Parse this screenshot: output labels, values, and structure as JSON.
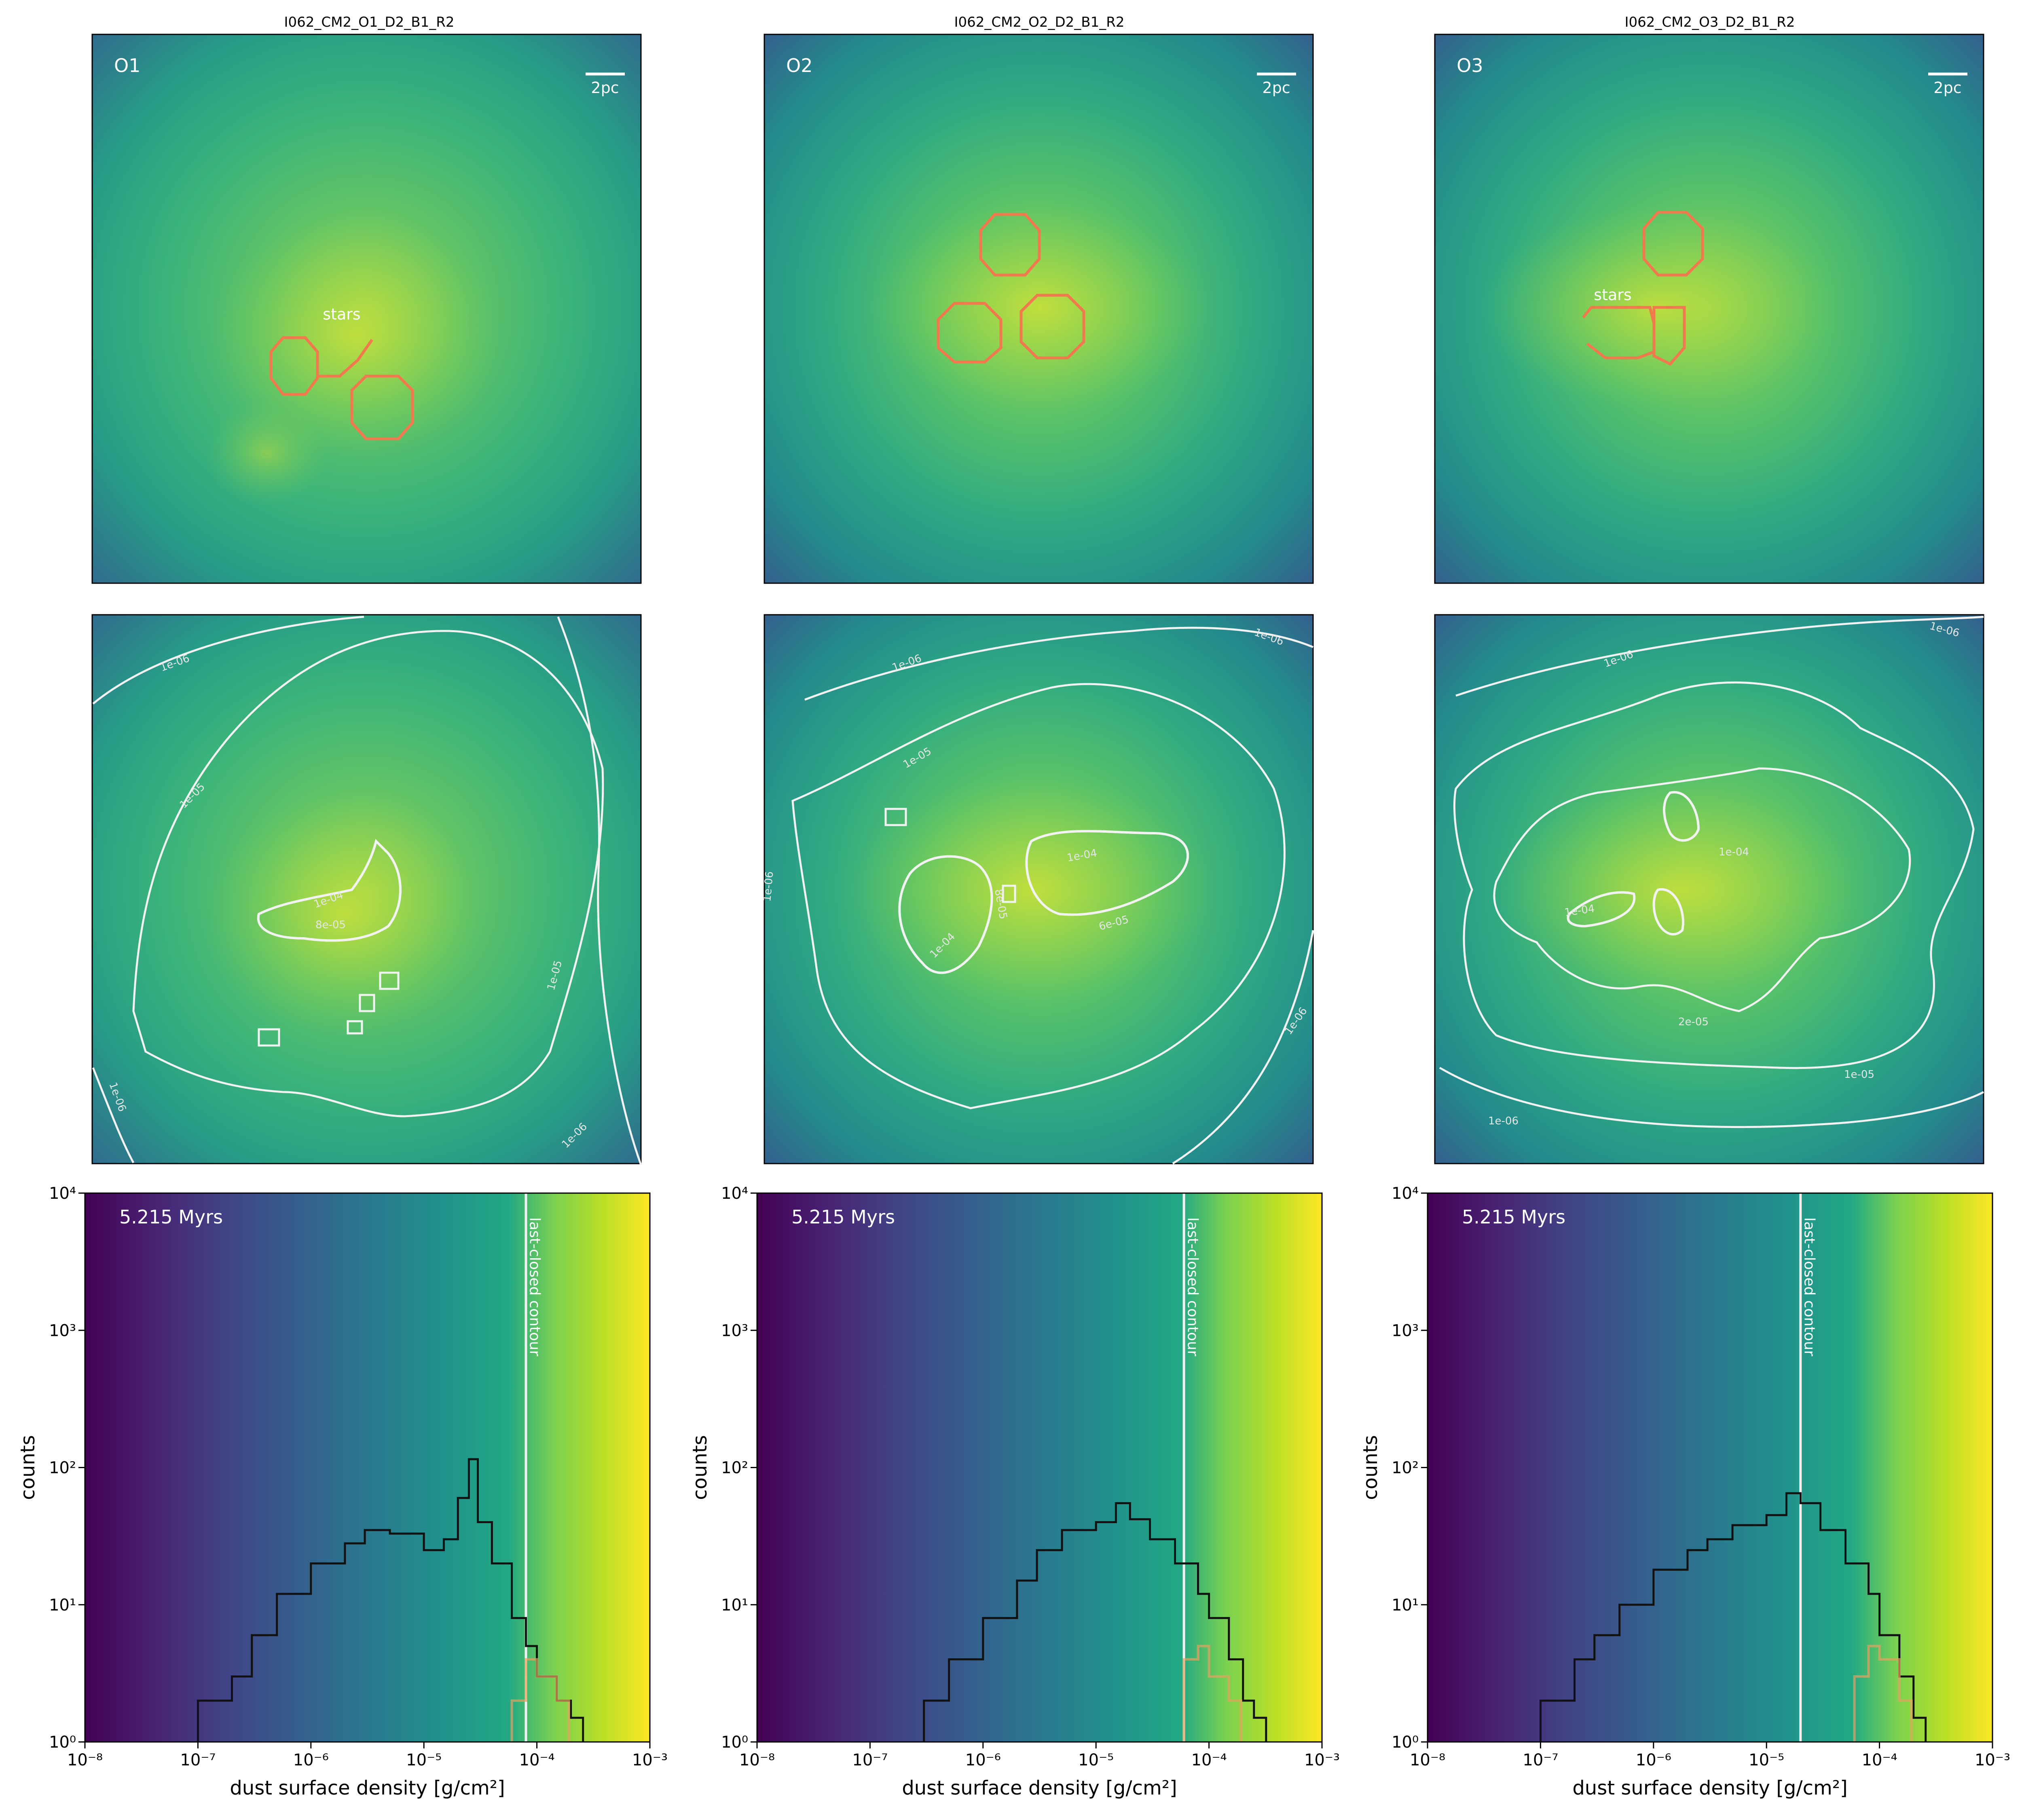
{
  "figure": {
    "panels_top": [
      {
        "title": "I062_CM2_O1_D2_B1_R2",
        "label": "O1",
        "scale_bar": "2pc",
        "annotation": "stars"
      },
      {
        "title": "I062_CM2_O2_D2_B1_R2",
        "label": "O2",
        "scale_bar": "2pc",
        "annotation": ""
      },
      {
        "title": "I062_CM2_O3_D2_B1_R2",
        "label": "O3",
        "scale_bar": "2pc",
        "annotation": "stars"
      }
    ],
    "panels_middle": [
      {
        "contour_labels": [
          "1e-06",
          "1e-05",
          "1e-04",
          "8e-05",
          "1e-05",
          "1e-06",
          "1e-06"
        ]
      },
      {
        "contour_labels": [
          "1e-06",
          "1e-06",
          "1e-05",
          "1e-04",
          "1e-04",
          "6e-05",
          "8e-05",
          "1e-06",
          "1e-06"
        ]
      },
      {
        "contour_labels": [
          "1e-06",
          "1e-06",
          "1e-04",
          "1e-04",
          "2e-05",
          "1e-05",
          "1e-06"
        ]
      }
    ]
  },
  "colors": {
    "contour": "#f2f2f2",
    "stars": "#f07a4e",
    "histogram": "#111111",
    "orange_hist": "#e8a060"
  },
  "chart_data": [
    {
      "type": "bar",
      "time_label": "5.215 Myrs",
      "xlabel": "dust surface density [g/cm²]",
      "ylabel": "counts",
      "xscale": "log",
      "yscale": "log",
      "xlim": [
        1e-08,
        0.001
      ],
      "ylim": [
        1,
        10000
      ],
      "xticks": [
        "10⁻⁸",
        "10⁻⁷",
        "10⁻⁶",
        "10⁻⁵",
        "10⁻⁴",
        "10⁻³"
      ],
      "yticks": [
        "10⁰",
        "10¹",
        "10²",
        "10³",
        "10⁴"
      ],
      "vline": {
        "x": 8e-05,
        "label": "last-closed contour"
      },
      "series": [
        {
          "x": [
            "1e-7",
            "2e-7",
            "3e-7",
            "5e-7",
            "1e-6",
            "2e-6",
            "3e-6",
            "5e-6",
            "1e-5",
            "1.5e-5",
            "2e-5",
            "2.5e-5",
            "3e-5",
            "4e-5",
            "6e-5",
            "8e-5",
            "1e-4",
            "1.5e-4",
            "2e-4"
          ],
          "values": [
            2,
            3,
            6,
            12,
            20,
            28,
            35,
            33,
            25,
            30,
            60,
            115,
            40,
            20,
            8,
            5,
            3,
            2,
            1.5
          ]
        },
        {
          "x": [
            "6e-5",
            "8e-5",
            "1e-4",
            "1.5e-4"
          ],
          "values": [
            2,
            4,
            3,
            2
          ]
        }
      ]
    },
    {
      "type": "bar",
      "time_label": "5.215 Myrs",
      "xlabel": "dust surface density [g/cm²]",
      "ylabel": "counts",
      "xscale": "log",
      "yscale": "log",
      "xlim": [
        1e-08,
        0.001
      ],
      "ylim": [
        1,
        10000
      ],
      "xticks": [
        "10⁻⁸",
        "10⁻⁷",
        "10⁻⁶",
        "10⁻⁵",
        "10⁻⁴",
        "10⁻³"
      ],
      "yticks": [
        "10⁰",
        "10¹",
        "10²",
        "10³",
        "10⁴"
      ],
      "vline": {
        "x": 6e-05,
        "label": "last-closed contour"
      },
      "series": [
        {
          "x": [
            "3e-7",
            "5e-7",
            "1e-6",
            "2e-6",
            "3e-6",
            "5e-6",
            "1e-5",
            "1.5e-5",
            "2e-5",
            "3e-5",
            "5e-5",
            "8e-5",
            "1e-4",
            "1.5e-4",
            "2e-4",
            "2.5e-4"
          ],
          "values": [
            2,
            4,
            8,
            15,
            25,
            35,
            40,
            55,
            42,
            30,
            20,
            12,
            8,
            4,
            2,
            1.5
          ]
        },
        {
          "x": [
            "6e-5",
            "8e-5",
            "1e-4",
            "1.5e-4"
          ],
          "values": [
            4,
            5,
            3,
            2
          ]
        }
      ]
    },
    {
      "type": "bar",
      "time_label": "5.215 Myrs",
      "xlabel": "dust surface density [g/cm²]",
      "ylabel": "counts",
      "xscale": "log",
      "yscale": "log",
      "xlim": [
        1e-08,
        0.001
      ],
      "ylim": [
        1,
        10000
      ],
      "xticks": [
        "10⁻⁸",
        "10⁻⁷",
        "10⁻⁶",
        "10⁻⁵",
        "10⁻⁴",
        "10⁻³"
      ],
      "yticks": [
        "10⁰",
        "10¹",
        "10²",
        "10³",
        "10⁴"
      ],
      "vline": {
        "x": 2e-05,
        "label": "last-closed contour"
      },
      "series": [
        {
          "x": [
            "1e-7",
            "2e-7",
            "3e-7",
            "5e-7",
            "1e-6",
            "2e-6",
            "3e-6",
            "5e-6",
            "1e-5",
            "1.5e-5",
            "2e-5",
            "3e-5",
            "5e-5",
            "8e-5",
            "1e-4",
            "1.5e-4",
            "2e-4"
          ],
          "values": [
            2,
            4,
            6,
            10,
            18,
            25,
            30,
            38,
            45,
            65,
            55,
            35,
            20,
            12,
            6,
            3,
            1.5
          ]
        },
        {
          "x": [
            "6e-5",
            "8e-5",
            "1e-4",
            "1.5e-4"
          ],
          "values": [
            3,
            5,
            4,
            2
          ]
        }
      ]
    }
  ]
}
